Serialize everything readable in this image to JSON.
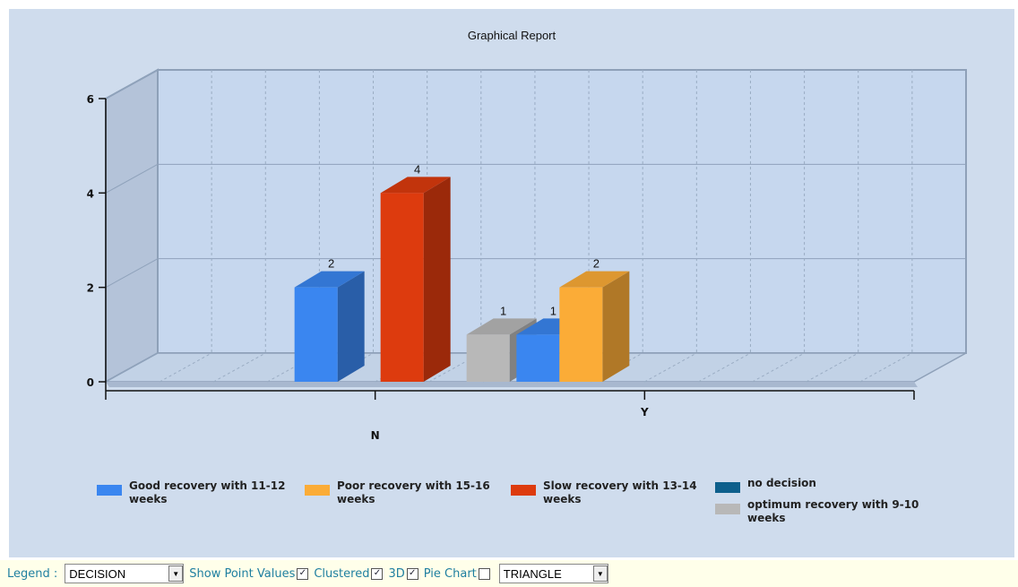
{
  "chart_data": {
    "type": "bar",
    "title": "Graphical Report",
    "style": "3d-clustered",
    "categories": [
      "N",
      "Y"
    ],
    "ylim": [
      0,
      6
    ],
    "yticks": [
      0,
      2,
      4,
      6
    ],
    "grid": true,
    "legend_position": "bottom",
    "show_point_values": true,
    "series": [
      {
        "name": "Good recovery with 11-12 weeks",
        "color": "#3a86f0",
        "values": [
          2,
          1
        ]
      },
      {
        "name": "Slow recovery with 13-14 weeks",
        "color": "#dd3b0e",
        "values": [
          4,
          null
        ]
      },
      {
        "name": "optimum recovery with 9-10 weeks",
        "color": "#b8b8b8",
        "values": [
          1,
          null
        ]
      },
      {
        "name": "Poor recovery with 15-16 weeks",
        "color": "#fbac37",
        "values": [
          null,
          2
        ]
      },
      {
        "name": "no decision",
        "color": "#0d5f8c",
        "values": [
          null,
          null
        ]
      }
    ]
  },
  "legend": [
    {
      "label": "Good recovery with 11-12 weeks",
      "color": "#3a86f0"
    },
    {
      "label": "Poor recovery with 15-16 weeks",
      "color": "#fbac37"
    },
    {
      "label": "Slow recovery with 13-14 weeks",
      "color": "#dd3b0e"
    },
    {
      "label": "no decision",
      "color": "#0d5f8c"
    },
    {
      "label": "optimum recovery with 9-10 weeks",
      "color": "#b8b8b8"
    }
  ],
  "controls": {
    "legend_label": "Legend :",
    "legend_value": "DECISION",
    "show_point_values_label": "Show Point Values",
    "show_point_values_checked": true,
    "clustered_label": "Clustered",
    "clustered_checked": true,
    "three_d_label": "3D",
    "three_d_checked": true,
    "pie_chart_label": "Pie Chart",
    "pie_chart_checked": false,
    "shape_value": "TRIANGLE"
  }
}
